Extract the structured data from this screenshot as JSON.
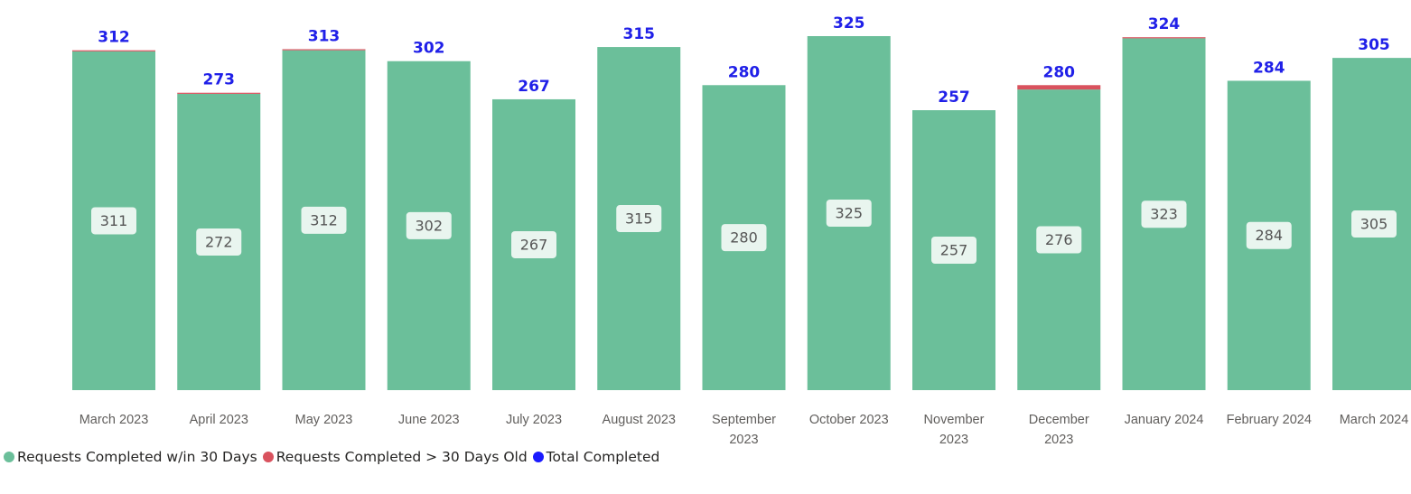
{
  "chart_data": {
    "type": "bar",
    "stacked": true,
    "categories": [
      "March 2023",
      "April 2023",
      "May 2023",
      "June 2023",
      "July 2023",
      "August 2023",
      "September 2023",
      "October 2023",
      "November 2023",
      "December 2023",
      "January 2024",
      "February 2024",
      "March 2024"
    ],
    "series": [
      {
        "name": "Requests Completed w/in 30 Days",
        "color": "#6bbf9a",
        "values": [
          311,
          272,
          312,
          302,
          267,
          315,
          280,
          325,
          257,
          276,
          323,
          284,
          305
        ]
      },
      {
        "name": "Requests Completed > 30 Days Old",
        "color": "#d9525e",
        "values": [
          1,
          1,
          1,
          0,
          0,
          0,
          0,
          0,
          0,
          4,
          1,
          0,
          0
        ]
      },
      {
        "name": "Total Completed",
        "color": "#1a1aff",
        "values": [
          312,
          273,
          313,
          302,
          267,
          315,
          280,
          325,
          257,
          280,
          324,
          284,
          305
        ]
      }
    ],
    "legend": "bottom-left"
  }
}
